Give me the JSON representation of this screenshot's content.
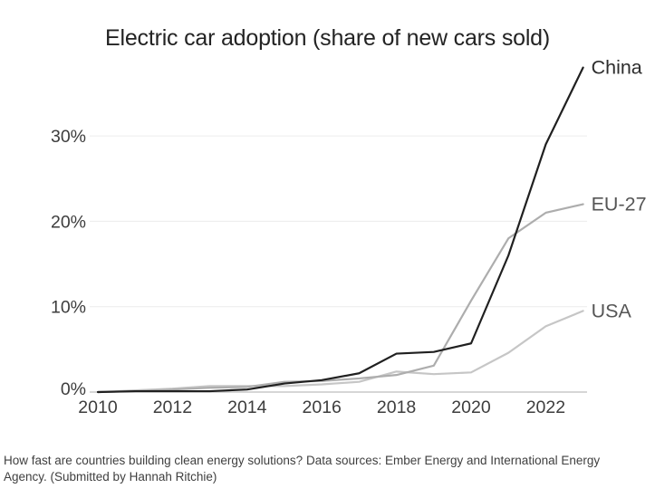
{
  "chart_data": {
    "type": "line",
    "title": "Electric car adoption (share of new cars sold)",
    "x": [
      2010,
      2011,
      2012,
      2013,
      2014,
      2015,
      2016,
      2017,
      2018,
      2019,
      2020,
      2021,
      2022,
      2023
    ],
    "series": [
      {
        "name": "China",
        "color": "#202020",
        "label_color": "#2d2d2d",
        "values": [
          0.0,
          0.1,
          0.1,
          0.1,
          0.3,
          1.0,
          1.4,
          2.2,
          4.5,
          4.7,
          5.7,
          16,
          29,
          38
        ]
      },
      {
        "name": "EU-27",
        "color": "#adadad",
        "label_color": "#565656",
        "values": [
          0.0,
          0.1,
          0.3,
          0.5,
          0.6,
          1.2,
          1.3,
          1.6,
          2.0,
          3.1,
          10.7,
          18,
          21,
          22
        ]
      },
      {
        "name": "USA",
        "color": "#c6c6c6",
        "label_color": "#565656",
        "values": [
          0.0,
          0.2,
          0.4,
          0.7,
          0.7,
          0.7,
          0.9,
          1.2,
          2.4,
          2.1,
          2.3,
          4.6,
          7.7,
          9.5
        ]
      }
    ],
    "xlabel": "",
    "ylabel": "",
    "x_ticks": [
      2010,
      2012,
      2014,
      2016,
      2018,
      2020,
      2022
    ],
    "y_ticks": [
      0,
      10,
      20,
      30
    ],
    "y_tick_suffix": "%",
    "xlim": [
      2010,
      2023
    ],
    "ylim": [
      0,
      40
    ],
    "grid": "horizontal",
    "legend_position": "end-of-line-labels"
  },
  "caption": {
    "lines": [
      "How fast are countries building clean energy solutions? Data sources: Ember Energy and International Energy",
      "Agency. (Submitted by Hannah Ritchie)"
    ]
  }
}
